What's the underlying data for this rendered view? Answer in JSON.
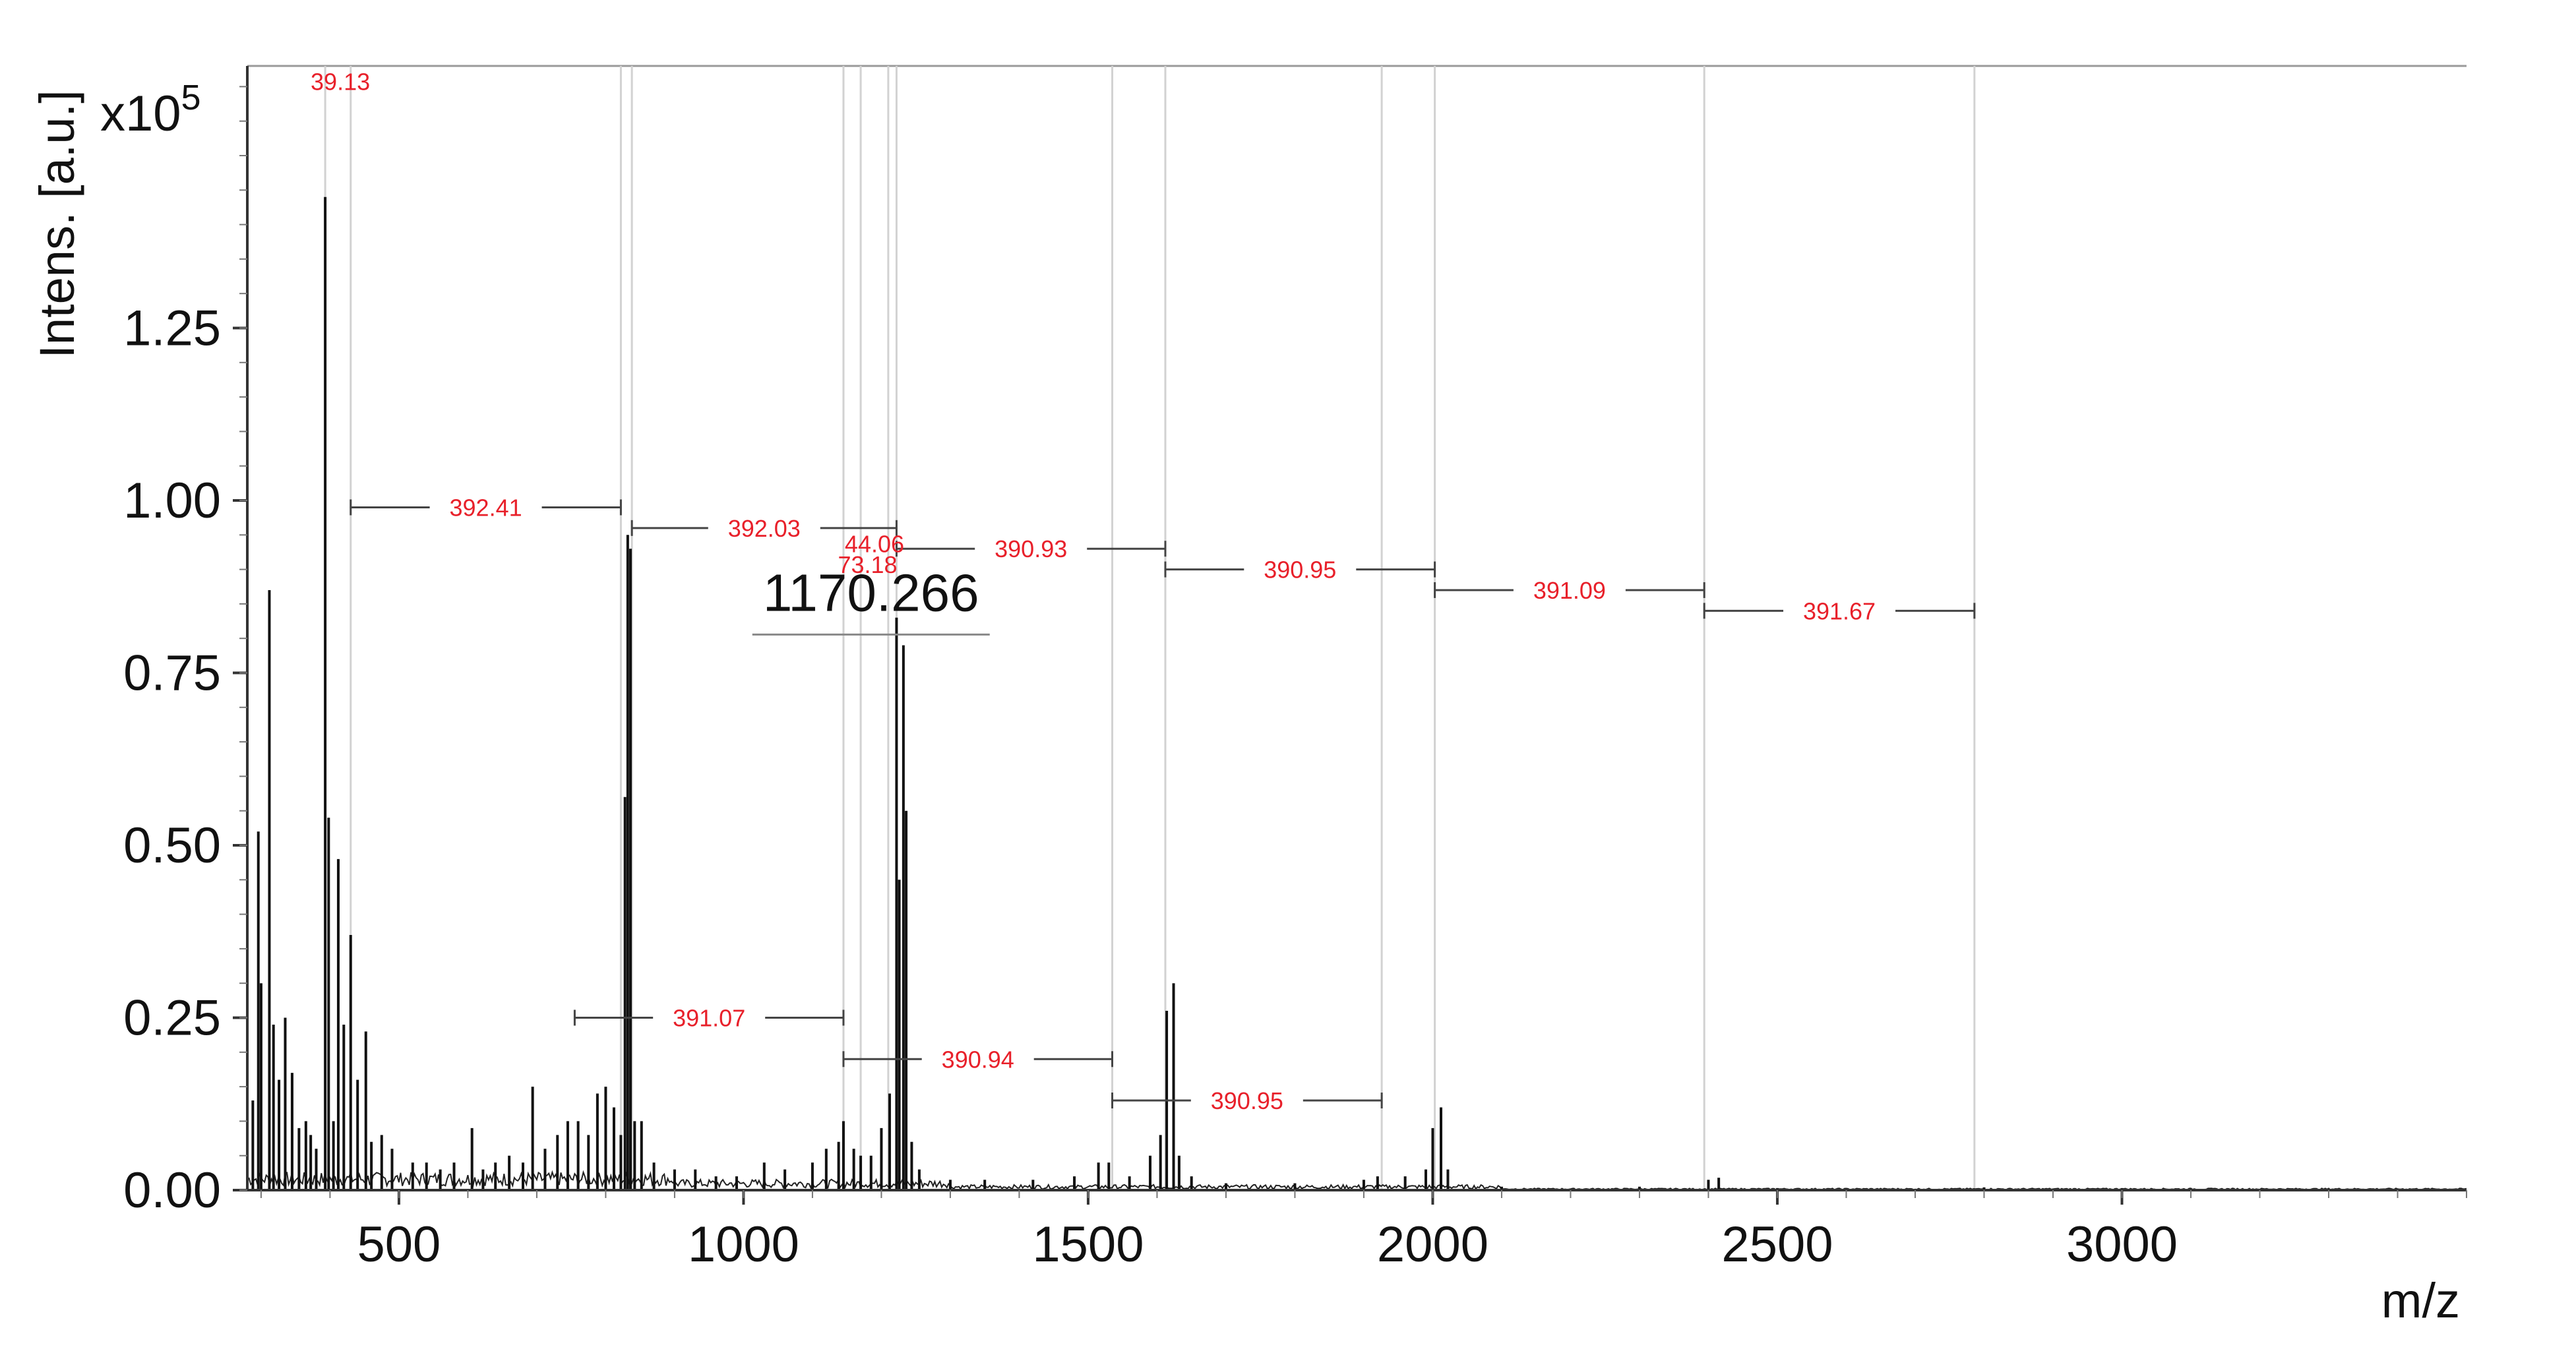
{
  "chart_data": {
    "type": "line",
    "title": "",
    "xlabel": "m/z",
    "ylabel": "Intens. [a.u.]",
    "y_multiplier": "x10",
    "y_multiplier_exp": "5",
    "xlim": [
      280,
      3500
    ],
    "ylim": [
      0,
      1.63
    ],
    "x_ticks": [
      {
        "value": 500,
        "label": "500"
      },
      {
        "value": 1000,
        "label": "1000"
      },
      {
        "value": 1500,
        "label": "1500"
      },
      {
        "value": 2000,
        "label": "2000"
      },
      {
        "value": 2500,
        "label": "2500"
      },
      {
        "value": 3000,
        "label": "3000"
      }
    ],
    "y_ticks": [
      {
        "value": 0.0,
        "label": "0.00"
      },
      {
        "value": 0.25,
        "label": "0.25"
      },
      {
        "value": 0.5,
        "label": "0.50"
      },
      {
        "value": 0.75,
        "label": "0.75"
      },
      {
        "value": 1.0,
        "label": "1.00"
      },
      {
        "value": 1.25,
        "label": "1.25"
      }
    ],
    "grid": false,
    "peaks": [
      [
        288,
        0.13
      ],
      [
        296,
        0.52
      ],
      [
        300,
        0.3
      ],
      [
        312,
        0.87
      ],
      [
        318,
        0.24
      ],
      [
        326,
        0.16
      ],
      [
        335,
        0.25
      ],
      [
        345,
        0.17
      ],
      [
        355,
        0.09
      ],
      [
        365,
        0.1
      ],
      [
        372,
        0.08
      ],
      [
        380,
        0.06
      ],
      [
        393,
        1.44
      ],
      [
        398,
        0.54
      ],
      [
        405,
        0.1
      ],
      [
        412,
        0.48
      ],
      [
        420,
        0.24
      ],
      [
        430,
        0.37
      ],
      [
        440,
        0.16
      ],
      [
        452,
        0.23
      ],
      [
        460,
        0.07
      ],
      [
        475,
        0.08
      ],
      [
        490,
        0.06
      ],
      [
        520,
        0.04
      ],
      [
        540,
        0.04
      ],
      [
        560,
        0.03
      ],
      [
        580,
        0.04
      ],
      [
        606,
        0.09
      ],
      [
        622,
        0.03
      ],
      [
        640,
        0.04
      ],
      [
        660,
        0.05
      ],
      [
        680,
        0.04
      ],
      [
        694,
        0.15
      ],
      [
        712,
        0.06
      ],
      [
        730,
        0.08
      ],
      [
        745,
        0.1
      ],
      [
        760,
        0.1
      ],
      [
        775,
        0.08
      ],
      [
        788,
        0.14
      ],
      [
        800,
        0.15
      ],
      [
        812,
        0.12
      ],
      [
        822,
        0.08
      ],
      [
        828,
        0.57
      ],
      [
        832,
        0.95
      ],
      [
        836,
        0.93
      ],
      [
        842,
        0.1
      ],
      [
        852,
        0.1
      ],
      [
        870,
        0.04
      ],
      [
        900,
        0.03
      ],
      [
        930,
        0.03
      ],
      [
        960,
        0.02
      ],
      [
        990,
        0.02
      ],
      [
        1030,
        0.04
      ],
      [
        1060,
        0.03
      ],
      [
        1100,
        0.04
      ],
      [
        1120,
        0.06
      ],
      [
        1138,
        0.07
      ],
      [
        1145,
        0.1
      ],
      [
        1160,
        0.06
      ],
      [
        1170,
        0.05
      ],
      [
        1185,
        0.05
      ],
      [
        1200,
        0.09
      ],
      [
        1212,
        0.14
      ],
      [
        1222,
        0.83
      ],
      [
        1226,
        0.45
      ],
      [
        1232,
        0.79
      ],
      [
        1236,
        0.55
      ],
      [
        1244,
        0.07
      ],
      [
        1255,
        0.03
      ],
      [
        1300,
        0.015
      ],
      [
        1350,
        0.015
      ],
      [
        1420,
        0.015
      ],
      [
        1480,
        0.02
      ],
      [
        1515,
        0.04
      ],
      [
        1530,
        0.04
      ],
      [
        1560,
        0.02
      ],
      [
        1590,
        0.05
      ],
      [
        1605,
        0.08
      ],
      [
        1614,
        0.26
      ],
      [
        1624,
        0.3
      ],
      [
        1632,
        0.05
      ],
      [
        1650,
        0.02
      ],
      [
        1700,
        0.01
      ],
      [
        1800,
        0.01
      ],
      [
        1900,
        0.015
      ],
      [
        1920,
        0.02
      ],
      [
        1960,
        0.02
      ],
      [
        1990,
        0.03
      ],
      [
        2000,
        0.09
      ],
      [
        2012,
        0.12
      ],
      [
        2022,
        0.03
      ],
      [
        2100,
        0.005
      ],
      [
        2300,
        0.005
      ],
      [
        2400,
        0.015
      ],
      [
        2415,
        0.018
      ],
      [
        2500,
        0.003
      ],
      [
        2800,
        0.004
      ],
      [
        3000,
        0.003
      ],
      [
        3400,
        0.002
      ]
    ],
    "annotations": [
      {
        "from": 430,
        "to": 822,
        "y": 0.99,
        "label": "392.41"
      },
      {
        "from": 838,
        "to": 1222,
        "y": 0.96,
        "label": "392.03"
      },
      {
        "from": 1222,
        "to": 1612,
        "y": 0.93,
        "label": "390.93"
      },
      {
        "from": 1612,
        "to": 2003,
        "y": 0.9,
        "label": "390.95"
      },
      {
        "from": 2003,
        "to": 2394,
        "y": 0.87,
        "label": "391.09"
      },
      {
        "from": 2394,
        "to": 2786,
        "y": 0.84,
        "label": "391.67"
      },
      {
        "from": 755,
        "to": 1145,
        "y": 0.25,
        "label": "391.07"
      },
      {
        "from": 1145,
        "to": 1535,
        "y": 0.19,
        "label": "390.94"
      },
      {
        "from": 1535,
        "to": 1926,
        "y": 0.13,
        "label": "390.95"
      }
    ],
    "small_labels": [
      {
        "x": 1190,
        "y": 0.925,
        "label": "44.06"
      },
      {
        "x": 1180,
        "y": 0.895,
        "label": "73.18"
      },
      {
        "x": 415,
        "y": 1.595,
        "label": "39.13"
      }
    ],
    "marker_lines": [
      393,
      430,
      822,
      838,
      1145,
      1170,
      1210,
      1222,
      1535,
      1612,
      1926,
      2003,
      2394,
      2786
    ],
    "peak_label": {
      "x": 1185,
      "y": 0.84,
      "label": "1170.266"
    }
  }
}
